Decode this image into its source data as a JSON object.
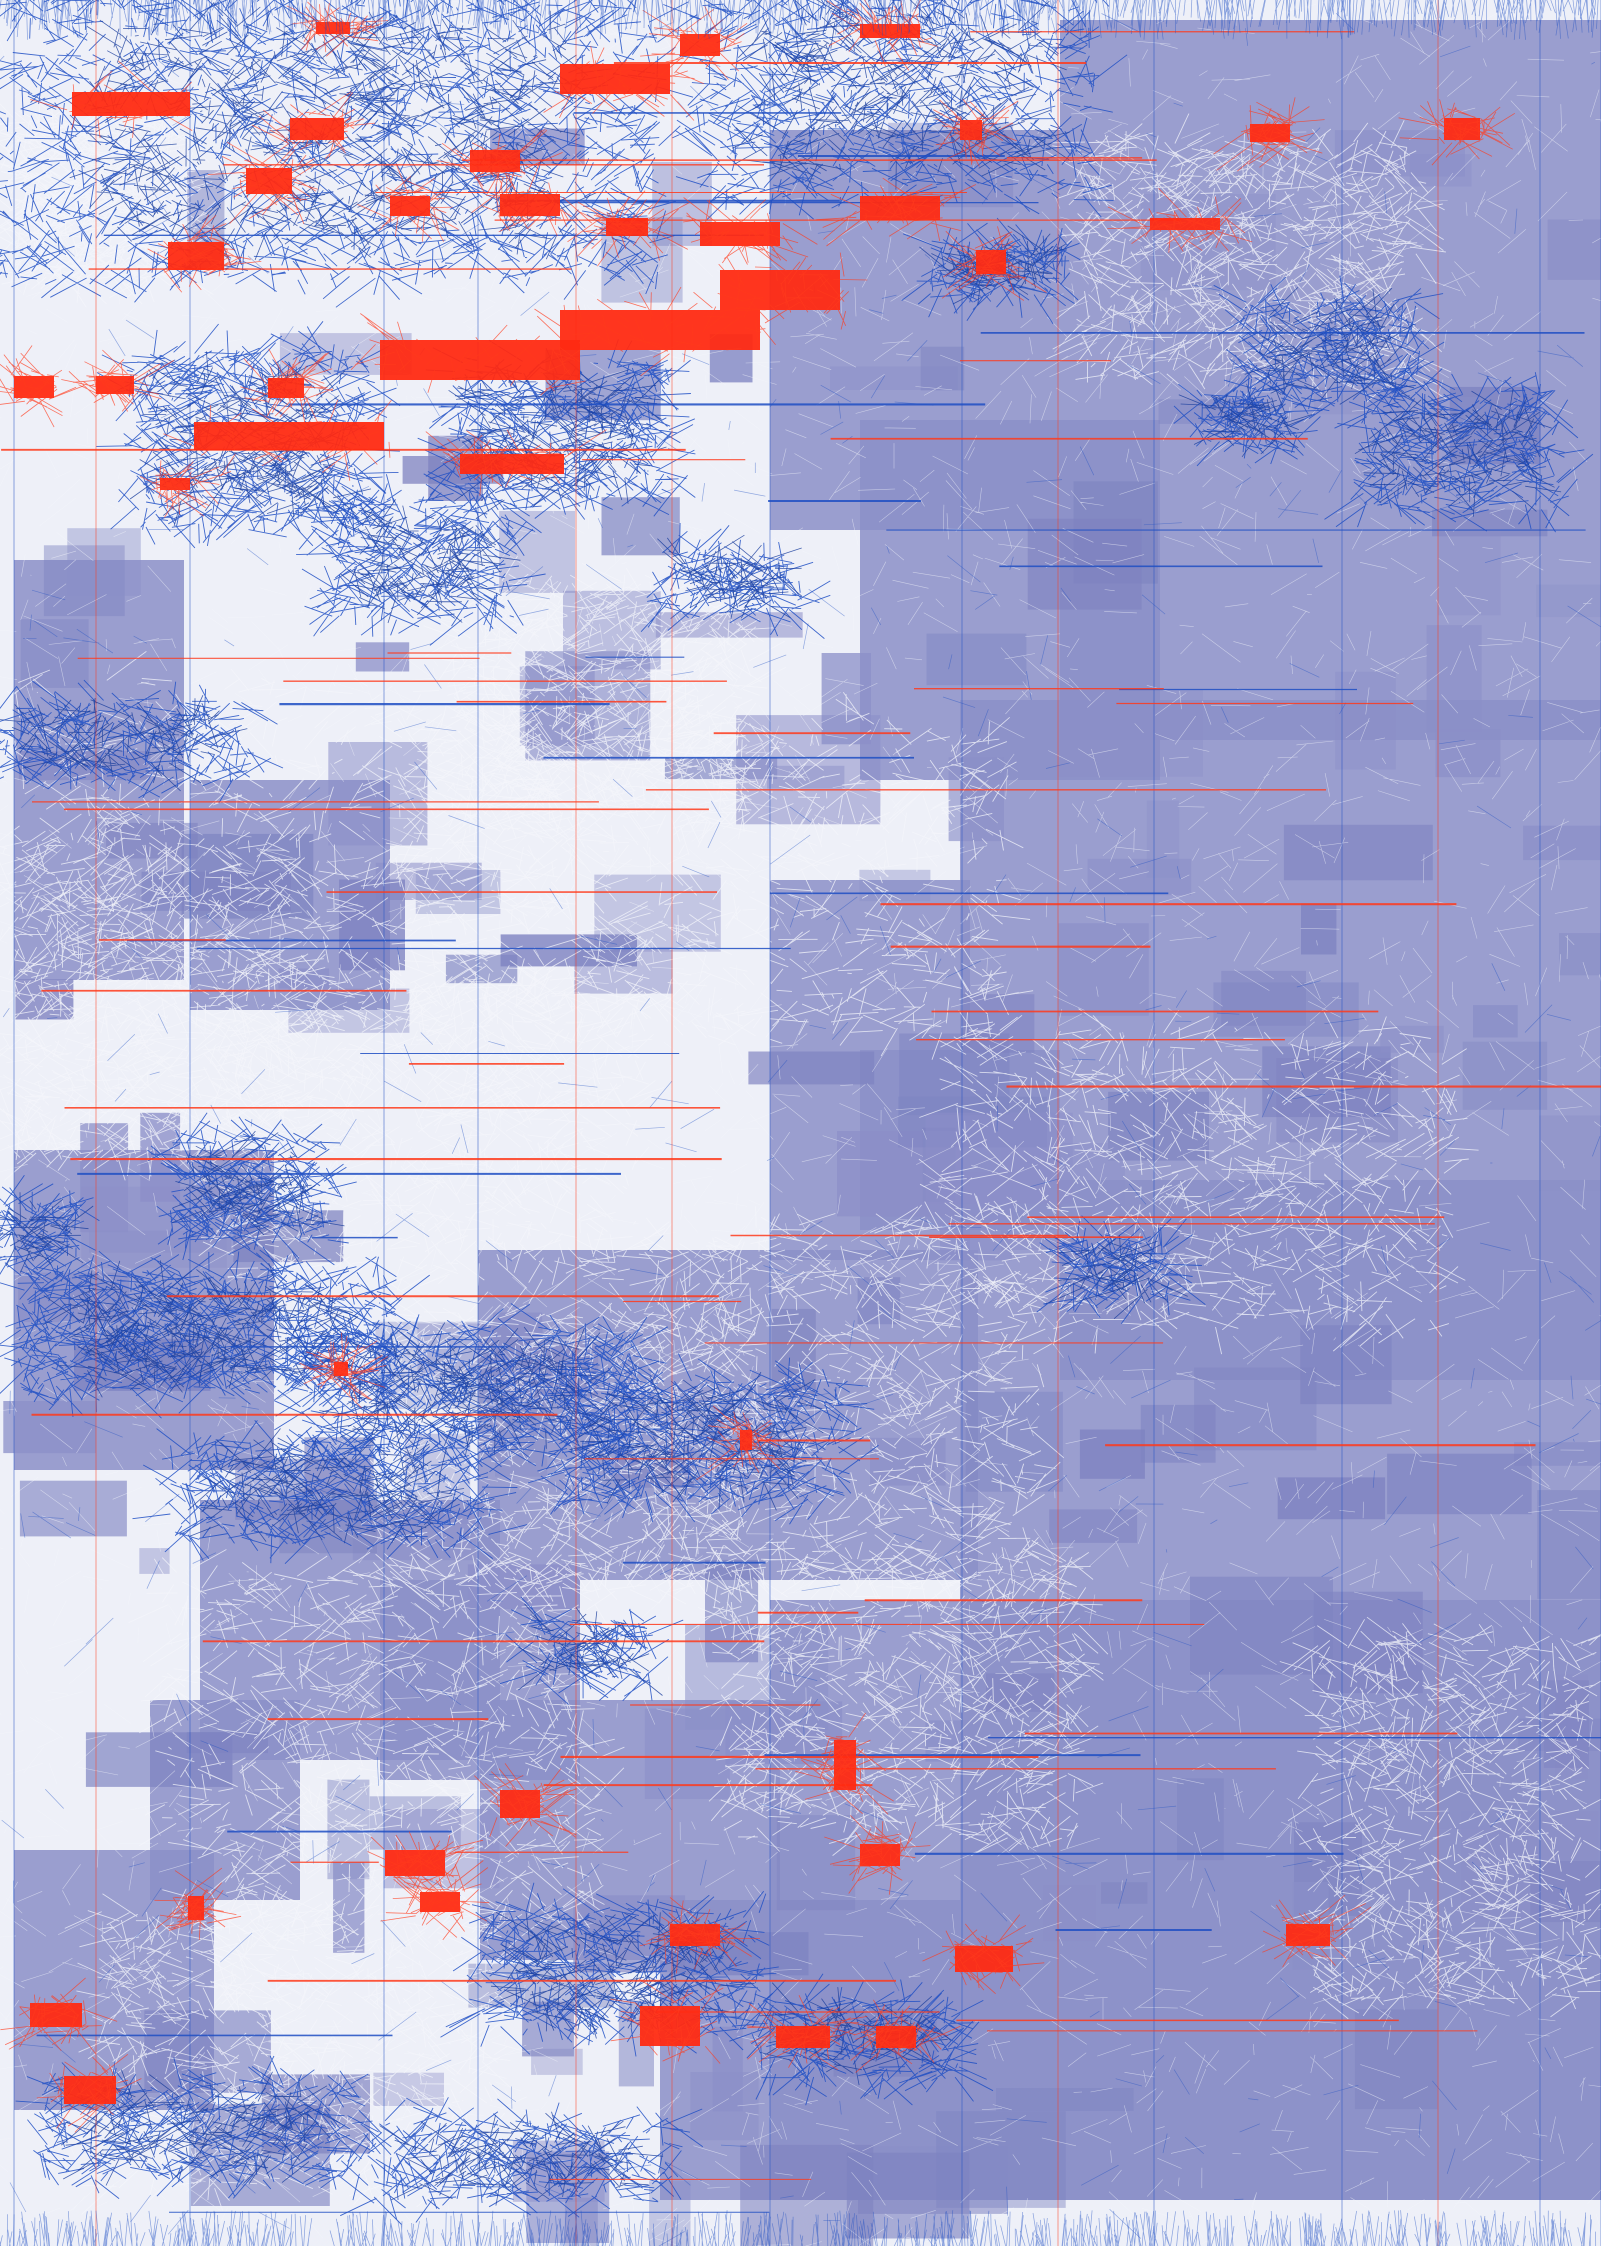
{
  "image": {
    "subject": "",
    "colors": {
      "background": "#eef0f8",
      "lavender_fill": "#8b8fc8",
      "lavender_dark": "#7d82c0",
      "white_lines": "#f4f5fb",
      "blue_lines": "#1f4fc4",
      "blue_dark": "#1a3e9e",
      "red_blocks": "#ff2a12",
      "red_lines": "#ff3a1c"
    }
  }
}
